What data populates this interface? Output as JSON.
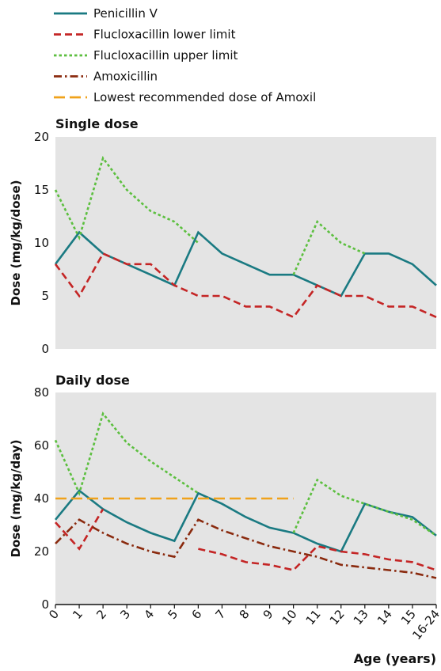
{
  "legend": [
    {
      "label": "Penicillin V",
      "color": "#1a7a82",
      "dash": "solid"
    },
    {
      "label": "Flucloxacillin lower limit",
      "color": "#c42525",
      "dash": "dash"
    },
    {
      "label": "Flucloxacillin upper limit",
      "color": "#5cbf3f",
      "dash": "dot"
    },
    {
      "label": "Amoxicillin",
      "color": "#8a2a0e",
      "dash": "dashdot"
    },
    {
      "label": "Lowest recommended dose of Amoxil",
      "color": "#f0a21b",
      "dash": "longdash"
    }
  ],
  "xlabel": "Age (years)",
  "chart_data": [
    {
      "type": "line",
      "title": "Single dose",
      "ylabel": "Dose (mg/kg/dose)",
      "ylim": [
        0,
        20
      ],
      "yticks": [
        0,
        5,
        10,
        15,
        20
      ],
      "grid": false,
      "categories": [
        "0",
        "1",
        "2",
        "3",
        "4",
        "5",
        "6",
        "7",
        "8",
        "9",
        "10",
        "11",
        "12",
        "13",
        "14",
        "15",
        "16-24"
      ],
      "series": [
        {
          "name": "Penicillin V",
          "values": [
            8,
            11,
            9,
            8,
            7,
            6,
            11,
            9,
            8,
            7,
            7,
            6,
            5,
            9,
            9,
            8,
            6
          ]
        },
        {
          "name": "Flucloxacillin lower limit",
          "values": [
            8,
            5,
            9,
            8,
            8,
            6,
            5,
            5,
            4,
            4,
            3,
            6,
            5,
            5,
            4,
            4,
            3
          ]
        },
        {
          "name": "Flucloxacillin upper limit",
          "values": [
            15,
            10.5,
            18,
            15,
            13,
            12,
            10,
            null,
            null,
            null,
            7,
            12,
            10,
            9,
            null,
            null,
            null
          ]
        }
      ]
    },
    {
      "type": "line",
      "title": "Daily dose",
      "ylabel": "Dose (mg/kg/day)",
      "ylim": [
        0,
        80
      ],
      "yticks": [
        0,
        20,
        40,
        60,
        80
      ],
      "grid": false,
      "categories": [
        "0",
        "1",
        "2",
        "3",
        "4",
        "5",
        "6",
        "7",
        "8",
        "9",
        "10",
        "11",
        "12",
        "13",
        "14",
        "15",
        "16-24"
      ],
      "series": [
        {
          "name": "Penicillin V",
          "values": [
            32,
            43,
            36,
            31,
            27,
            24,
            42,
            38,
            33,
            29,
            27,
            23,
            20,
            38,
            35,
            33,
            26
          ]
        },
        {
          "name": "Flucloxacillin lower limit",
          "values": [
            31,
            21,
            36,
            null,
            null,
            null,
            21,
            19,
            16,
            15,
            13,
            22,
            20,
            19,
            17,
            16,
            13
          ]
        },
        {
          "name": "Flucloxacillin upper limit",
          "values": [
            62,
            42,
            72,
            61,
            54,
            48,
            42,
            null,
            null,
            null,
            27,
            47,
            41,
            38,
            35,
            32,
            26
          ]
        },
        {
          "name": "Amoxicillin",
          "values": [
            23,
            32,
            27,
            23,
            20,
            18,
            32,
            28,
            25,
            22,
            20,
            18,
            15,
            14,
            13,
            12,
            10
          ]
        },
        {
          "name": "Lowest recommended dose of Amoxil",
          "values": [
            40,
            40,
            40,
            40,
            40,
            40,
            40,
            40,
            40,
            40,
            40,
            null,
            null,
            null,
            null,
            null,
            null
          ]
        }
      ]
    }
  ]
}
